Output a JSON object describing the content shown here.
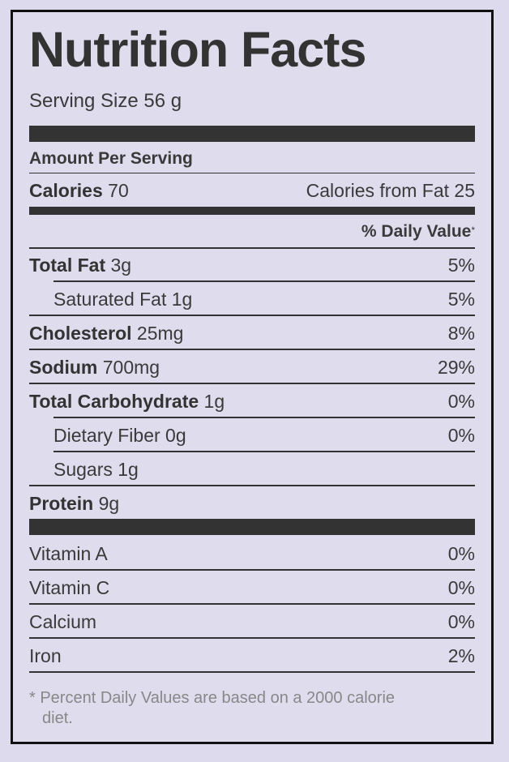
{
  "label": {
    "title": "Nutrition Facts",
    "serving_size": "Serving Size 56 g",
    "amount_per_serving": "Amount Per Serving",
    "calories_label": "Calories",
    "calories_value": "70",
    "calories_from_fat": "Calories from Fat 25",
    "daily_value_header": "% Daily Value",
    "daily_value_mark": "*",
    "nutrients": [
      {
        "name": "Total Fat",
        "amount": "3g",
        "dv": "5%"
      },
      {
        "name": "Saturated Fat",
        "amount": "1g",
        "dv": "5%"
      },
      {
        "name": "Cholesterol",
        "amount": "25mg",
        "dv": "8%"
      },
      {
        "name": "Sodium",
        "amount": "700mg",
        "dv": "29%"
      },
      {
        "name": "Total Carbohydrate",
        "amount": "1g",
        "dv": "0%"
      },
      {
        "name": "Dietary Fiber",
        "amount": "0g",
        "dv": "0%"
      },
      {
        "name": "Sugars",
        "amount": "1g",
        "dv": ""
      },
      {
        "name": "Protein",
        "amount": "9g",
        "dv": ""
      }
    ],
    "vitamins": [
      {
        "name": "Vitamin A",
        "dv": "0%"
      },
      {
        "name": "Vitamin C",
        "dv": "0%"
      },
      {
        "name": "Calcium",
        "dv": "0%"
      },
      {
        "name": "Iron",
        "dv": "2%"
      }
    ],
    "footnote_line1": "* Percent Daily Values are based on a 2000 calorie",
    "footnote_line2": "diet."
  }
}
